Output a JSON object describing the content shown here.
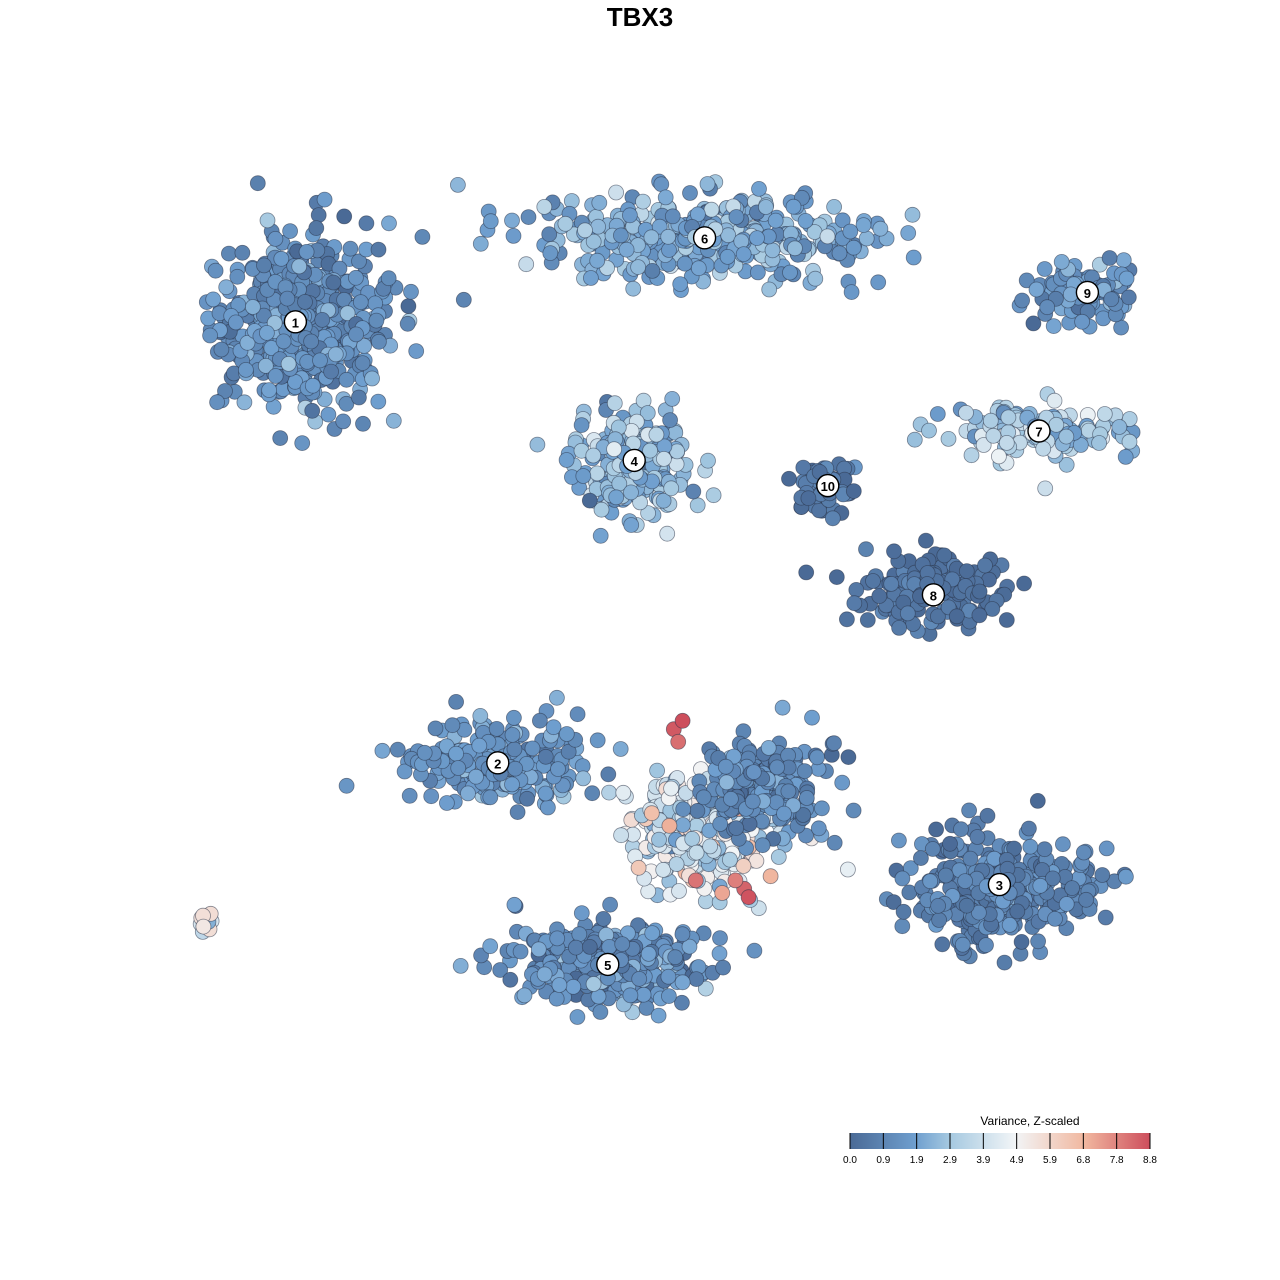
{
  "chart_data": {
    "type": "scatter",
    "title": "TBX3",
    "xlabel": "",
    "ylabel": "",
    "grid": false,
    "colorscale": {
      "title": "Variance, Z-scaled",
      "ticks": [
        "0.0",
        "0.9",
        "1.9",
        "2.9",
        "3.9",
        "4.9",
        "5.9",
        "6.8",
        "7.8",
        "8.8"
      ],
      "range": [
        0.0,
        8.8
      ],
      "colors": [
        "#4a6a96",
        "#6f9fcf",
        "#a4c8e0",
        "#f2f5f7",
        "#f1b8a0",
        "#cd4e5c"
      ],
      "placement": "bottom-right"
    },
    "clusters": [
      {
        "label": "1",
        "x": -8.4,
        "y": 7.1,
        "spread_x": 1.9,
        "spread_y": 1.9,
        "n": 520,
        "value_mean": 1.4,
        "value_sd": 0.6
      },
      {
        "label": "2",
        "x": -3.8,
        "y": -3.4,
        "spread_x": 1.9,
        "spread_y": 0.9,
        "n": 230,
        "value_mean": 1.6,
        "value_sd": 0.5
      },
      {
        "label": "3",
        "x": 7.6,
        "y": -6.3,
        "spread_x": 1.9,
        "spread_y": 1.2,
        "n": 340,
        "value_mean": 0.9,
        "value_sd": 0.5
      },
      {
        "label": "4",
        "x": -0.7,
        "y": 3.8,
        "spread_x": 1.2,
        "spread_y": 1.2,
        "n": 240,
        "value_mean": 2.6,
        "value_sd": 0.8
      },
      {
        "label": "5",
        "x": -1.3,
        "y": -8.2,
        "spread_x": 2.0,
        "spread_y": 0.9,
        "n": 330,
        "value_mean": 1.4,
        "value_sd": 0.7
      },
      {
        "label": "6",
        "x": 0.9,
        "y": 9.1,
        "spread_x": 3.3,
        "spread_y": 0.9,
        "n": 420,
        "value_mean": 2.2,
        "value_sd": 0.7
      },
      {
        "label": "7",
        "x": 8.5,
        "y": 4.5,
        "spread_x": 2.3,
        "spread_y": 0.6,
        "n": 150,
        "value_mean": 3.0,
        "value_sd": 0.8
      },
      {
        "label": "8",
        "x": 6.1,
        "y": 0.6,
        "spread_x": 1.5,
        "spread_y": 0.8,
        "n": 160,
        "value_mean": 0.3,
        "value_sd": 0.4
      },
      {
        "label": "9",
        "x": 9.6,
        "y": 7.8,
        "spread_x": 1.2,
        "spread_y": 0.6,
        "n": 110,
        "value_mean": 1.4,
        "value_sd": 0.6
      },
      {
        "label": "10",
        "x": 3.7,
        "y": 3.2,
        "spread_x": 0.6,
        "spread_y": 0.7,
        "n": 60,
        "value_mean": 0.5,
        "value_sd": 0.4
      },
      {
        "label": "",
        "x": 0.8,
        "y": -5.1,
        "spread_x": 1.4,
        "spread_y": 1.1,
        "n": 320,
        "value_mean": 4.2,
        "value_sd": 1.1
      },
      {
        "label": "",
        "x": 2.2,
        "y": -4.0,
        "spread_x": 1.3,
        "spread_y": 1.1,
        "n": 200,
        "value_mean": 1.2,
        "value_sd": 0.6
      },
      {
        "label": "",
        "x": -10.6,
        "y": -7.2,
        "spread_x": 0.5,
        "spread_y": 0.3,
        "n": 25,
        "value_mean": 4.5,
        "value_sd": 1.5
      }
    ],
    "hotspots": [
      {
        "x": 0.2,
        "y": -2.6,
        "value": 8.6
      },
      {
        "x": 0.4,
        "y": -2.4,
        "value": 8.8
      },
      {
        "x": 0.3,
        "y": -2.9,
        "value": 8.2
      },
      {
        "x": 0.7,
        "y": -6.2,
        "value": 8.1
      },
      {
        "x": 1.8,
        "y": -6.4,
        "value": 8.4
      },
      {
        "x": 1.6,
        "y": -6.2,
        "value": 7.9
      },
      {
        "x": 1.9,
        "y": -6.6,
        "value": 8.7
      },
      {
        "x": 1.3,
        "y": -6.5,
        "value": 7.2
      },
      {
        "x": -0.3,
        "y": -4.6,
        "value": 6.6
      },
      {
        "x": 0.1,
        "y": -4.9,
        "value": 7.0
      },
      {
        "x": -0.6,
        "y": -5.9,
        "value": 6.3
      },
      {
        "x": 2.4,
        "y": -6.1,
        "value": 6.9
      },
      {
        "x": -10.8,
        "y": -7.1,
        "value": 6.8
      },
      {
        "x": -10.9,
        "y": -7.3,
        "value": 6.5
      }
    ]
  }
}
